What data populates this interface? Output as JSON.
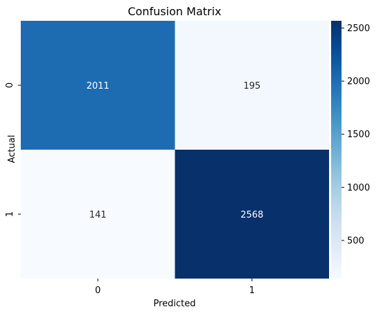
{
  "chart_data": {
    "type": "heatmap",
    "title": "Confusion Matrix",
    "xlabel": "Predicted",
    "ylabel": "Actual",
    "x_categories": [
      "0",
      "1"
    ],
    "y_categories": [
      "0",
      "1"
    ],
    "values": [
      [
        2011,
        195
      ],
      [
        141,
        2568
      ]
    ],
    "colormap": "Blues",
    "colorbar": {
      "range": [
        141,
        2568
      ],
      "ticks": [
        500,
        1000,
        1500,
        2000,
        2500
      ],
      "tick_labels": [
        "500",
        "1000",
        "1500",
        "2000",
        "2500"
      ]
    },
    "grid": false,
    "legend": "colorbar-right"
  }
}
